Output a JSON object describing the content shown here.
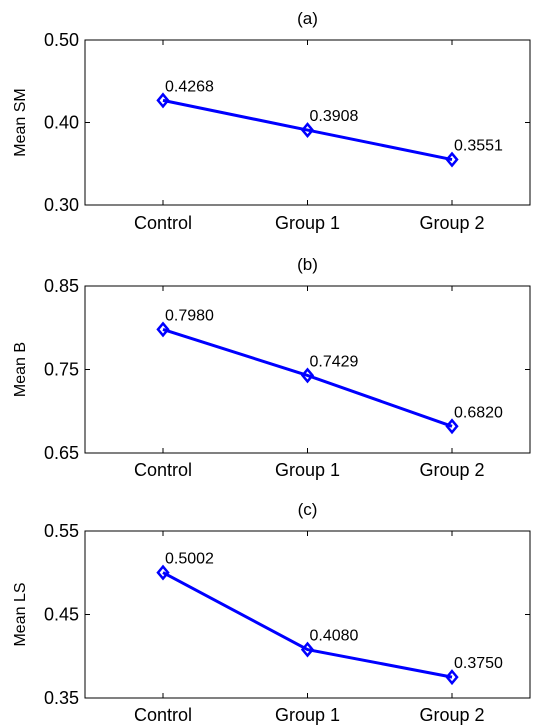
{
  "chart_data": [
    {
      "type": "line",
      "title": "(a)",
      "ylabel": "Mean SM",
      "categories": [
        "Control",
        "Group 1",
        "Group 2"
      ],
      "yticks": [
        "0.30",
        "0.40",
        "0.50"
      ],
      "ylim": [
        0.3,
        0.5
      ],
      "values": [
        0.4268,
        0.3908,
        0.3551
      ],
      "data_labels": [
        "0.4268",
        "0.3908",
        "0.3551"
      ],
      "color": "#0000ff",
      "marker": "diamond"
    },
    {
      "type": "line",
      "title": "(b)",
      "ylabel": "Mean B",
      "categories": [
        "Control",
        "Group 1",
        "Group 2"
      ],
      "yticks": [
        "0.65",
        "0.75",
        "0.85"
      ],
      "ylim": [
        0.65,
        0.85
      ],
      "values": [
        0.798,
        0.7429,
        0.682
      ],
      "data_labels": [
        "0.7980",
        "0.7429",
        "0.6820"
      ],
      "color": "#0000ff",
      "marker": "diamond"
    },
    {
      "type": "line",
      "title": "(c)",
      "ylabel": "Mean LS",
      "categories": [
        "Control",
        "Group 1",
        "Group 2"
      ],
      "yticks": [
        "0.35",
        "0.45",
        "0.55"
      ],
      "ylim": [
        0.35,
        0.55
      ],
      "values": [
        0.5002,
        0.408,
        0.375
      ],
      "data_labels": [
        "0.5002",
        "0.4080",
        "0.3750"
      ],
      "color": "#0000ff",
      "marker": "diamond"
    }
  ]
}
